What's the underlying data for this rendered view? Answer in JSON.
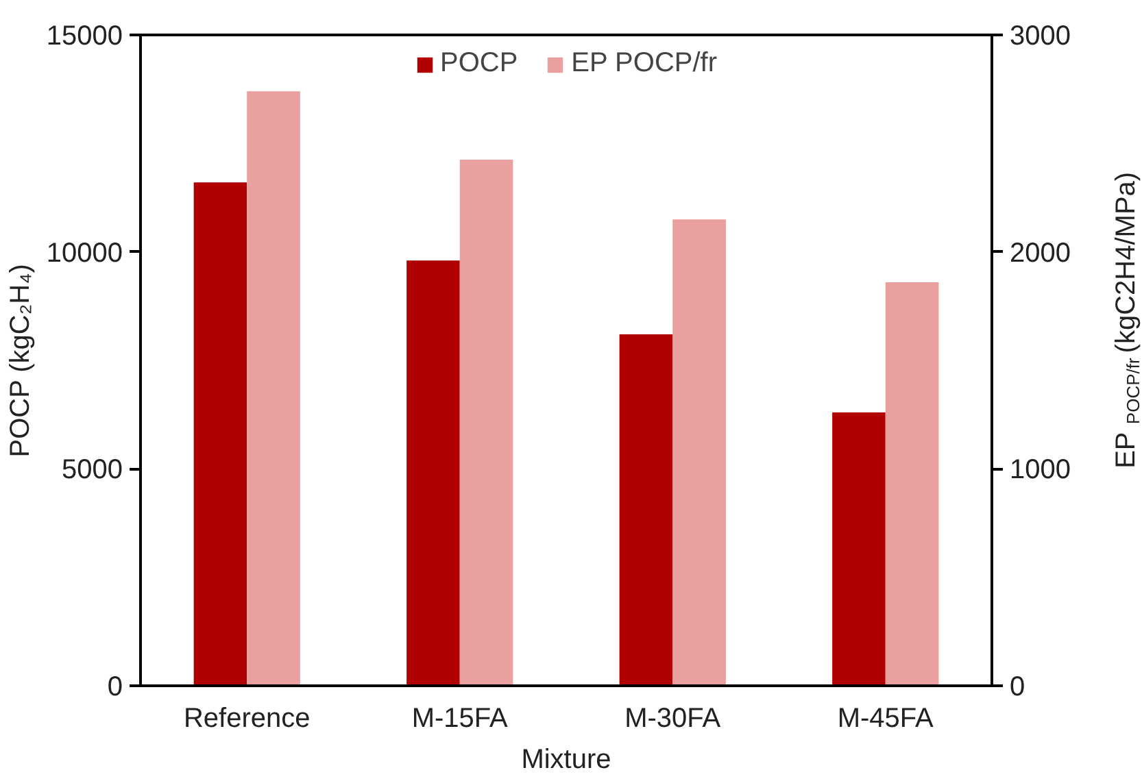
{
  "chart_data": {
    "type": "bar",
    "xlabel": "Mixture",
    "ylabel": "POCP (kgC₂H₄)",
    "y2label": "EP $_{POCP/fr}$ (kgC2H4/MPa)",
    "categories": [
      "Reference",
      "M-15FA",
      "M-30FA",
      "M-45FA"
    ],
    "series": [
      {
        "name": "POCP",
        "color": "#b00000",
        "values": [
          11600,
          9800,
          8100,
          6300
        ]
      },
      {
        "name": "EP POCP/fr",
        "color": "#eba0a0",
        "values": [
          2740,
          2425,
          2150,
          1860
        ],
        "axis": "y2"
      }
    ],
    "ylim": [
      0,
      15000
    ],
    "yticks": [
      0,
      5000,
      10000,
      15000
    ],
    "y2lim": [
      0,
      3000
    ],
    "y2ticks": [
      0,
      1000,
      2000,
      3000
    ],
    "grid": false,
    "legend": "top"
  }
}
